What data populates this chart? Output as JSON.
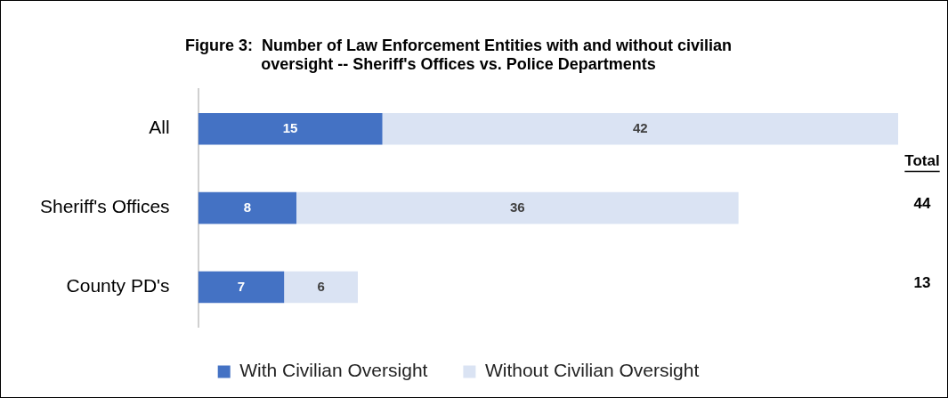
{
  "chart_data": {
    "type": "bar",
    "orientation": "horizontal",
    "stacked": true,
    "title": [
      "Figure 3:  Number of Law Enforcement Entities with and without civilian",
      "oversight -- Sheriff's Offices vs. Police Departments"
    ],
    "categories": [
      "All",
      "Sheriff's Offices",
      "County PD's"
    ],
    "series": [
      {
        "name": "With Civilian Oversight",
        "color": "#4472c4",
        "values": [
          15,
          8,
          7
        ]
      },
      {
        "name": "Without Civilian Oversight",
        "color": "#dae3f3",
        "values": [
          42,
          36,
          6
        ]
      }
    ],
    "xlim": [
      0,
      57
    ],
    "tick_labels": "y",
    "data_labels": true,
    "legend": "bottom",
    "annotations": [
      "Total",
      "44",
      "13"
    ]
  }
}
